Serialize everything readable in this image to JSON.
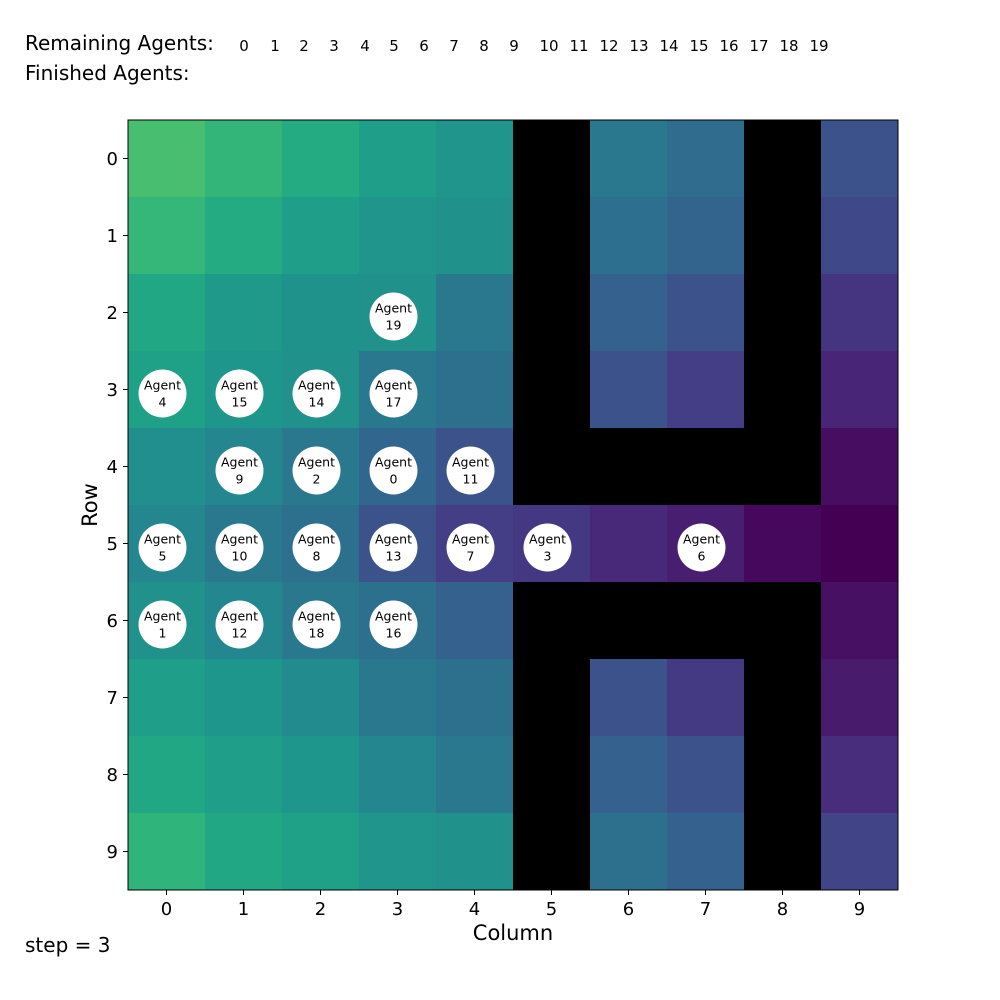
{
  "header": {
    "remaining_label": "Remaining Agents:",
    "finished_label": "Finished Agents:",
    "remaining_ids": [
      "0",
      "1",
      "2",
      "3",
      "4",
      "5",
      "6",
      "7",
      "8",
      "9",
      "10",
      "11",
      "12",
      "13",
      "14",
      "15",
      "16",
      "17",
      "18",
      "19"
    ],
    "finished_ids": []
  },
  "footer": {
    "step_text": "step = 3"
  },
  "axes": {
    "xlabel": "Column",
    "ylabel": "Row",
    "xticks": [
      "0",
      "1",
      "2",
      "3",
      "4",
      "5",
      "6",
      "7",
      "8",
      "9"
    ],
    "yticks": [
      "0",
      "1",
      "2",
      "3",
      "4",
      "5",
      "6",
      "7",
      "8",
      "9"
    ]
  },
  "grid": {
    "rows": 10,
    "cols": 10,
    "wall_color": "#000000",
    "cells": [
      [
        "#48bf70",
        "#33b57a",
        "#25ab82",
        "#1f9e89",
        "#1f958b",
        "#000000",
        "#2a788e",
        "#2f6c8e",
        "#000000",
        "#3b528b"
      ],
      [
        "#35b779",
        "#25ab82",
        "#1f9e89",
        "#1f958b",
        "#21918c",
        "#000000",
        "#2d6f8e",
        "#32648e",
        "#000000",
        "#3f4889"
      ],
      [
        "#22a785",
        "#1f9a8a",
        "#20928c",
        "#21918c",
        "#2a788e",
        "#000000",
        "#34618d",
        "#3b528b",
        "#000000",
        "#453581"
      ],
      [
        "#1fa187",
        "#1f968b",
        "#21918c",
        "#2a788e",
        "#2d708e",
        "#000000",
        "#3b528b",
        "#433e85",
        "#000000",
        "#482576"
      ],
      [
        "#218f8d",
        "#24868e",
        "#2a788e",
        "#31668e",
        "#3b528b",
        "#000000",
        "#000000",
        "#000000",
        "#000000",
        "#470d60"
      ],
      [
        "#24868e",
        "#2a788e",
        "#2d708e",
        "#3b528b",
        "#433e85",
        "#453882",
        "#482979",
        "#481f70",
        "#46085c",
        "#440154"
      ],
      [
        "#21918c",
        "#24868e",
        "#2a788e",
        "#2d708e",
        "#34618d",
        "#000000",
        "#000000",
        "#000000",
        "#000000",
        "#471063"
      ],
      [
        "#1f9e89",
        "#1f968b",
        "#228b8d",
        "#2a788e",
        "#2d708e",
        "#000000",
        "#3b528b",
        "#443983",
        "#000000",
        "#481b6d"
      ],
      [
        "#22a785",
        "#1f9e89",
        "#1f968b",
        "#24868e",
        "#2a788e",
        "#000000",
        "#34618d",
        "#3b528b",
        "#000000",
        "#472d7b"
      ],
      [
        "#2fb47c",
        "#22a785",
        "#1fa187",
        "#1f958b",
        "#21918c",
        "#000000",
        "#2d708e",
        "#34618d",
        "#000000",
        "#414487"
      ]
    ]
  },
  "agents": [
    {
      "label": "Agent",
      "id": "19",
      "row": 2,
      "col": 3
    },
    {
      "label": "Agent",
      "id": "4",
      "row": 3,
      "col": 0
    },
    {
      "label": "Agent",
      "id": "15",
      "row": 3,
      "col": 1
    },
    {
      "label": "Agent",
      "id": "14",
      "row": 3,
      "col": 2
    },
    {
      "label": "Agent",
      "id": "17",
      "row": 3,
      "col": 3
    },
    {
      "label": "Agent",
      "id": "9",
      "row": 4,
      "col": 1
    },
    {
      "label": "Agent",
      "id": "2",
      "row": 4,
      "col": 2
    },
    {
      "label": "Agent",
      "id": "0",
      "row": 4,
      "col": 3
    },
    {
      "label": "Agent",
      "id": "11",
      "row": 4,
      "col": 4
    },
    {
      "label": "Agent",
      "id": "5",
      "row": 5,
      "col": 0
    },
    {
      "label": "Agent",
      "id": "10",
      "row": 5,
      "col": 1
    },
    {
      "label": "Agent",
      "id": "8",
      "row": 5,
      "col": 2
    },
    {
      "label": "Agent",
      "id": "13",
      "row": 5,
      "col": 3
    },
    {
      "label": "Agent",
      "id": "7",
      "row": 5,
      "col": 4
    },
    {
      "label": "Agent",
      "id": "3",
      "row": 5,
      "col": 5
    },
    {
      "label": "Agent",
      "id": "6",
      "row": 5,
      "col": 7
    },
    {
      "label": "Agent",
      "id": "1",
      "row": 6,
      "col": 0
    },
    {
      "label": "Agent",
      "id": "12",
      "row": 6,
      "col": 1
    },
    {
      "label": "Agent",
      "id": "18",
      "row": 6,
      "col": 2
    },
    {
      "label": "Agent",
      "id": "16",
      "row": 6,
      "col": 3
    }
  ]
}
